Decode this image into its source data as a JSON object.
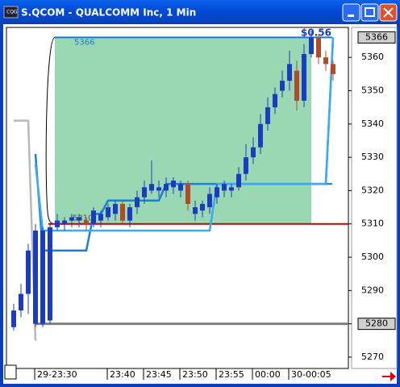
{
  "chart_data": {
    "type": "candlestick",
    "title": "S.QCOM - QUALCOMM Inc, 1 Min",
    "categories": [
      null,
      null,
      null,
      "29-23:30",
      null,
      null,
      null,
      null,
      null,
      null,
      null,
      null,
      null,
      "23:40",
      null,
      null,
      null,
      null,
      "23:45",
      null,
      null,
      null,
      null,
      "23:50",
      null,
      null,
      null,
      null,
      "23:55",
      null,
      null,
      null,
      null,
      "00:00",
      null,
      null,
      null,
      null,
      "30-00:05",
      null,
      null,
      null,
      null,
      null,
      null
    ],
    "open": [
      5279,
      5284,
      5289,
      5280,
      5280,
      5281,
      5309,
      5310,
      5311,
      5311,
      5311,
      5310,
      5311,
      5312,
      5313,
      5316,
      5311,
      5315,
      5318,
      5320,
      5320,
      5320,
      5321,
      5320,
      5322,
      5313,
      5314,
      5315,
      5318,
      5320,
      5320,
      5321,
      5325,
      5330,
      5333,
      5340,
      5345,
      5350,
      5353,
      5356,
      5347,
      5361,
      5366,
      5360,
      5358
    ],
    "high": [
      5286,
      5292,
      5304,
      5310,
      5309,
      5310,
      5313,
      5312,
      5313,
      5313,
      5312,
      5315,
      5314,
      5316,
      5317,
      5317,
      5316,
      5320,
      5323,
      5329,
      5323,
      5324,
      5324,
      5323,
      5323,
      5317,
      5317,
      5321,
      5322,
      5323,
      5322,
      5327,
      5334,
      5336,
      5343,
      5348,
      5351,
      5356,
      5362,
      5359,
      5364,
      5368,
      5367,
      5362,
      5359
    ],
    "low": [
      5278,
      5282,
      5283,
      5279,
      5279,
      5280,
      5308,
      5308,
      5309,
      5309,
      5308,
      5309,
      5309,
      5311,
      5311,
      5310,
      5309,
      5313,
      5316,
      5319,
      5318,
      5318,
      5319,
      5318,
      5314,
      5311,
      5312,
      5313,
      5316,
      5318,
      5318,
      5320,
      5323,
      5328,
      5331,
      5338,
      5343,
      5348,
      5350,
      5344,
      5345,
      5360,
      5358,
      5356,
      5353
    ],
    "close": [
      5284,
      5289,
      5302,
      5308,
      5308,
      5309,
      5311,
      5311,
      5312,
      5312,
      5310,
      5314,
      5313,
      5315,
      5316,
      5311,
      5315,
      5318,
      5321,
      5322,
      5321,
      5322,
      5323,
      5322,
      5316,
      5315,
      5316,
      5319,
      5321,
      5322,
      5321,
      5325,
      5330,
      5333,
      5340,
      5345,
      5349,
      5353,
      5358,
      5347,
      5361,
      5366,
      5360,
      5358,
      5355
    ],
    "up_color": "#1a3cc0",
    "down_color": "#b04a28",
    "ylim": [
      5266.6,
      5369
    ],
    "yticks": [
      5270,
      5280,
      5290,
      5300,
      5310,
      5320,
      5330,
      5340,
      5350,
      5360
    ],
    "axis_markers": [
      5366,
      5280
    ],
    "zone": [
      5310,
      5366
    ],
    "zone_color": "#9ad8b4",
    "levels": [
      5366,
      5322,
      5310,
      5280
    ],
    "level_colors": [
      "#1e78d8",
      "#1e78d8",
      "#c00000",
      "#808080"
    ],
    "lines": [
      {
        "color": "#1a7ee0",
        "values": [
          null,
          null,
          null,
          5331,
          5302,
          5302,
          5302,
          5302,
          5302,
          5302,
          5302,
          5313,
          5313,
          5317,
          5317,
          5317,
          5317,
          5317,
          5317,
          5317,
          5317,
          5322,
          5322,
          5322,
          5322,
          5322,
          5322,
          5322,
          5322,
          5322,
          5322,
          5322,
          5322,
          5322,
          5322,
          5322,
          5322,
          5322,
          5322,
          5322,
          5322,
          5322,
          5322,
          5322,
          5366
        ]
      },
      {
        "color": "#3aaaf2",
        "values": [
          null,
          null,
          null,
          5328,
          5308,
          5308,
          5308,
          5308,
          5308,
          5308,
          5308,
          5308,
          5308,
          5308,
          5308,
          5308,
          5308,
          5308,
          5308,
          5308,
          5308,
          5308,
          5308,
          5308,
          5308,
          5308,
          5308,
          5308,
          5322,
          5322,
          5322,
          5322,
          5322,
          5322,
          5322,
          5322,
          5322,
          5322,
          5322,
          5322,
          5322,
          5322,
          5322,
          5322,
          5366
        ]
      },
      {
        "color": "#b8b8b8",
        "values": [
          5341,
          5341,
          5341,
          5275,
          null,
          null,
          null,
          null,
          null,
          null,
          null,
          null,
          null,
          null,
          null,
          null,
          null,
          null,
          null,
          null,
          null,
          null,
          null,
          null,
          null,
          null,
          null,
          null,
          null,
          null,
          null,
          null,
          null,
          null,
          null,
          null,
          null,
          null,
          null,
          null,
          null,
          null,
          null,
          null,
          null
        ]
      }
    ],
    "annotation": "$0.56",
    "grid": true
  }
}
